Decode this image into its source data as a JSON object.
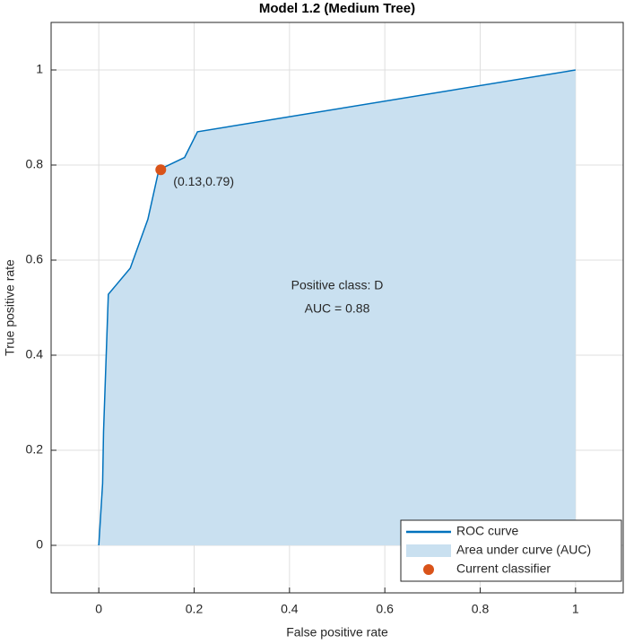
{
  "chart_data": {
    "type": "line",
    "title": "Model 1.2 (Medium Tree)",
    "xlabel": "False positive rate",
    "ylabel": "True positive rate",
    "x": [
      0,
      0.008,
      0.01,
      0.02,
      0.066,
      0.103,
      0.126,
      0.18,
      0.207,
      1
    ],
    "series": [
      {
        "name": "ROC curve",
        "color": "#0072bd",
        "values": [
          0,
          0.13,
          0.24,
          0.528,
          0.583,
          0.686,
          0.79,
          0.816,
          0.87,
          1
        ]
      }
    ],
    "area": {
      "name": "Area under curve (AUC)",
      "color": "#c9e0f0"
    },
    "point": {
      "name": "Current classifier",
      "color": "#d95319",
      "x": 0.13,
      "y": 0.79,
      "label": "(0.13,0.79)"
    },
    "annotations": [
      "Positive class: D",
      "AUC = 0.88"
    ],
    "xlim": [
      -0.1,
      1.1
    ],
    "ylim": [
      -0.1,
      1.1
    ],
    "xticks": [
      0,
      0.2,
      0.4,
      0.6,
      0.8,
      1
    ],
    "yticks": [
      0,
      0.2,
      0.4,
      0.6,
      0.8,
      1
    ],
    "grid": true,
    "legend_position": "lower right"
  }
}
